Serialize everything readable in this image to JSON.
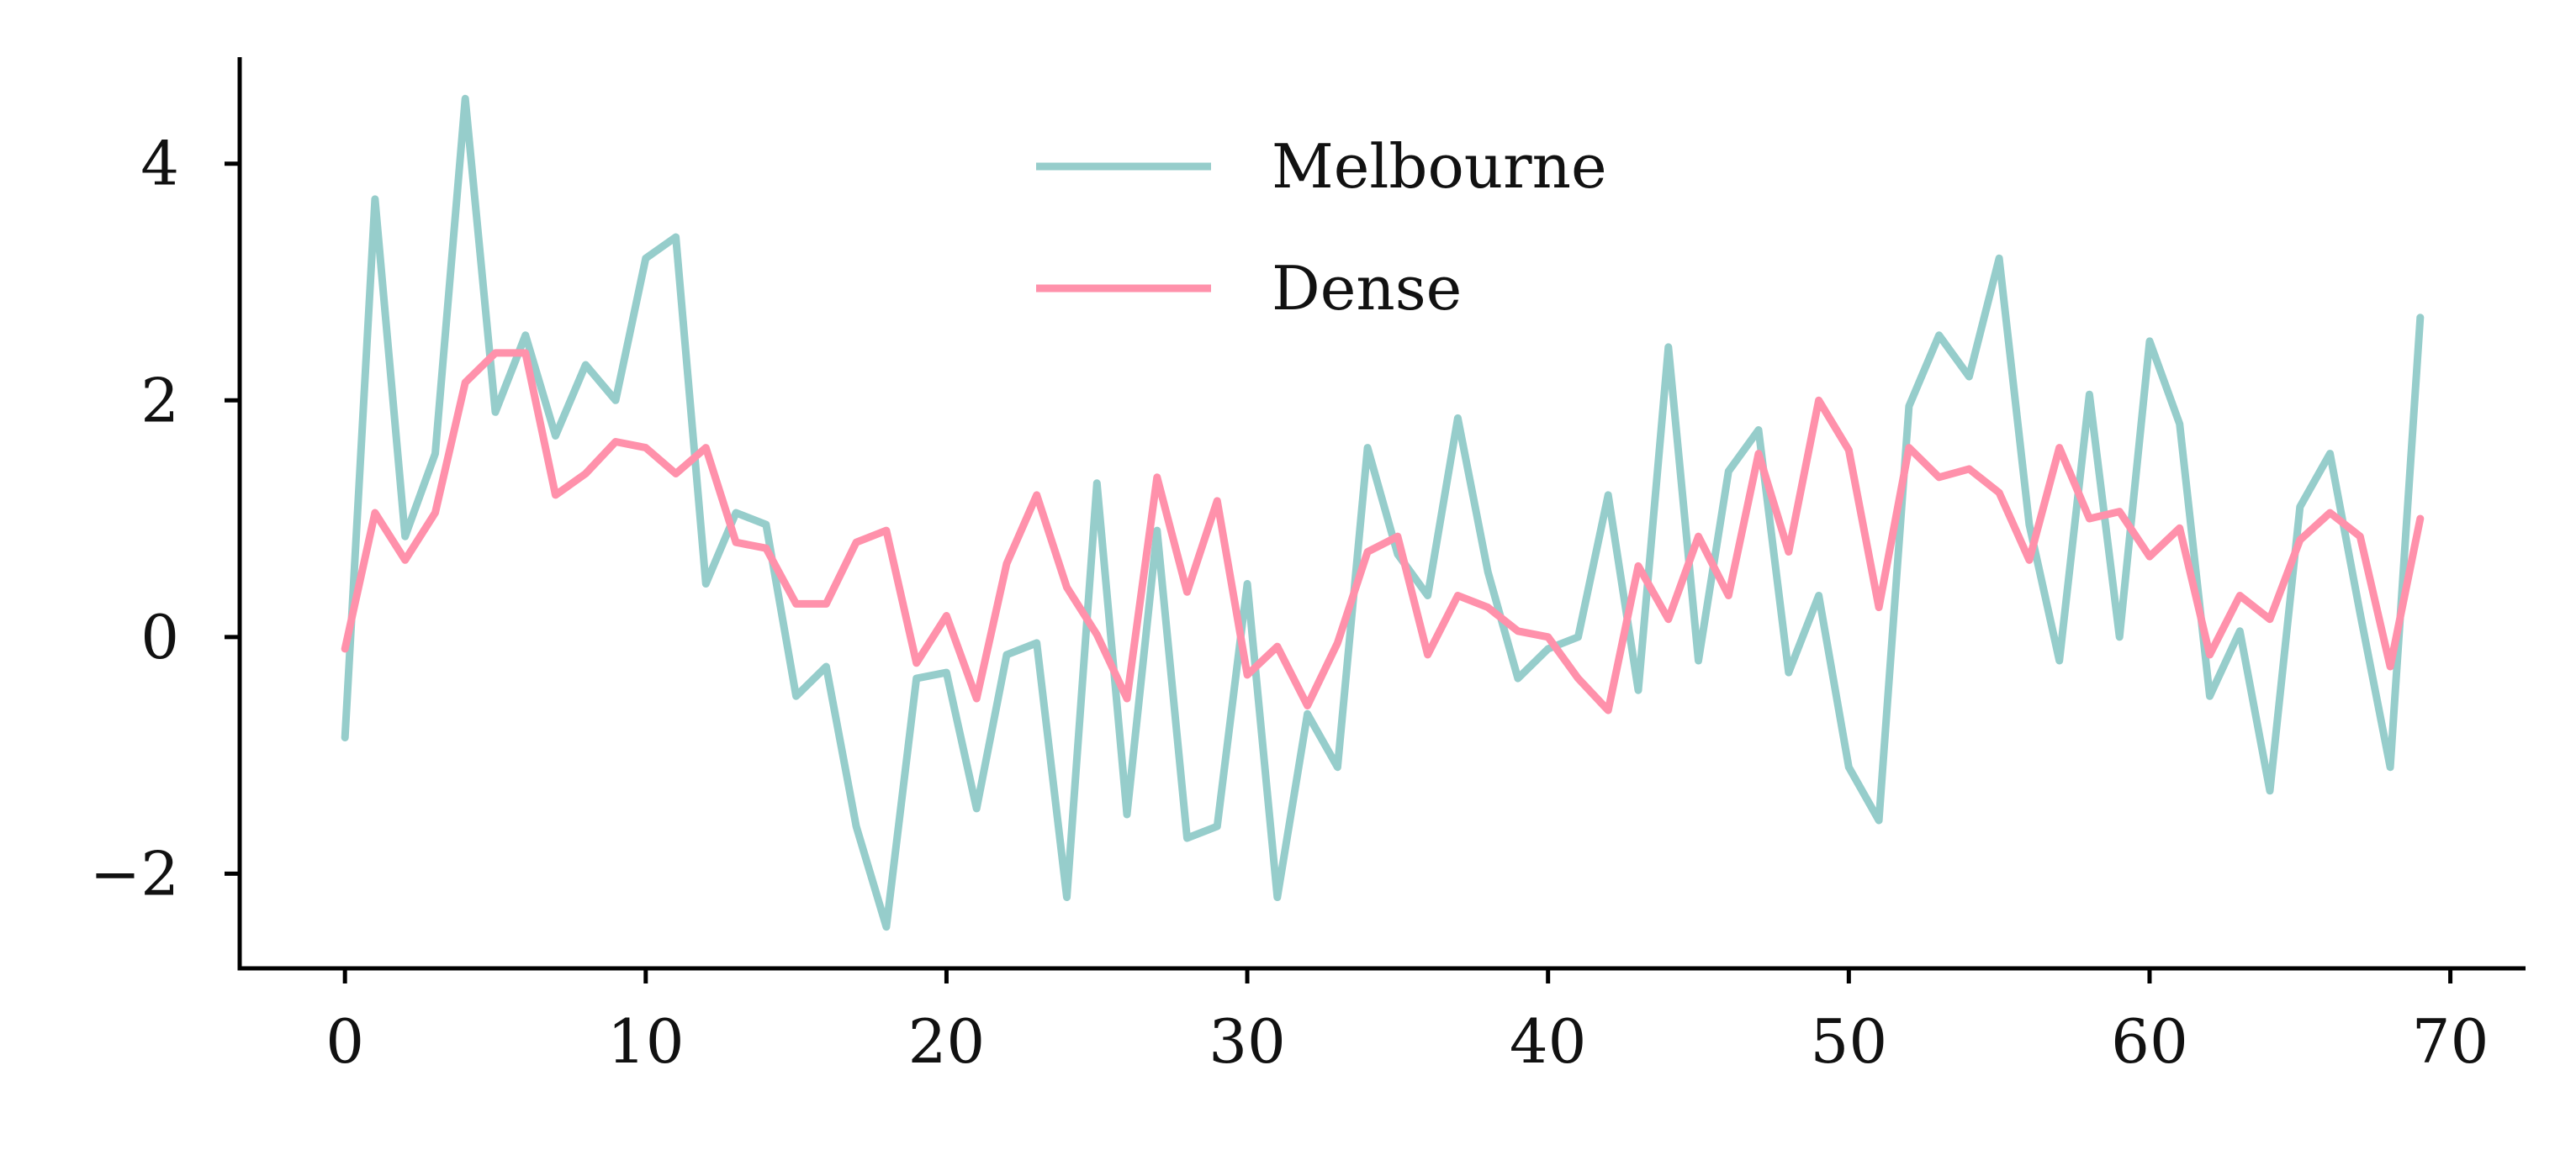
{
  "chart_data": {
    "type": "line",
    "title": "",
    "xlabel": "",
    "ylabel": "",
    "xlim": [
      -3.5,
      72.5
    ],
    "ylim": [
      -2.8,
      4.9
    ],
    "xticks": [
      0,
      10,
      20,
      30,
      40,
      50,
      60,
      70
    ],
    "yticks": [
      -2,
      0,
      2,
      4
    ],
    "xtick_labels": [
      "0",
      "10",
      "20",
      "30",
      "40",
      "50",
      "60",
      "70"
    ],
    "ytick_labels": [
      "−2",
      "0",
      "2",
      "4"
    ],
    "grid": false,
    "legend_position": "upper center",
    "x": [
      0,
      1,
      2,
      3,
      4,
      5,
      6,
      7,
      8,
      9,
      10,
      11,
      12,
      13,
      14,
      15,
      16,
      17,
      18,
      19,
      20,
      21,
      22,
      23,
      24,
      25,
      26,
      27,
      28,
      29,
      30,
      31,
      32,
      33,
      34,
      35,
      36,
      37,
      38,
      39,
      40,
      41,
      42,
      43,
      44,
      45,
      46,
      47,
      48,
      49,
      50,
      51,
      52,
      53,
      54,
      55,
      56,
      57,
      58,
      59,
      60,
      61,
      62,
      63,
      64,
      65,
      66,
      67,
      68,
      69
    ],
    "series": [
      {
        "name": "Melbourne",
        "color": "#96cdcb",
        "values": [
          -0.85,
          3.7,
          0.85,
          1.55,
          4.55,
          1.9,
          2.55,
          1.7,
          2.3,
          2.0,
          3.2,
          3.38,
          0.45,
          1.05,
          0.95,
          -0.5,
          -0.25,
          -1.6,
          -2.45,
          -0.35,
          -0.3,
          -1.45,
          -0.15,
          -0.05,
          -2.2,
          1.3,
          -1.5,
          0.9,
          -1.7,
          -1.6,
          0.45,
          -2.2,
          -0.65,
          -1.1,
          1.6,
          0.7,
          0.35,
          1.85,
          0.55,
          -0.35,
          -0.1,
          0.0,
          1.2,
          -0.45,
          2.45,
          -0.2,
          1.4,
          1.75,
          -0.3,
          0.35,
          -1.1,
          -1.55,
          1.95,
          2.55,
          2.2,
          3.2,
          0.95,
          -0.2,
          2.05,
          0.0,
          2.5,
          1.8,
          -0.5,
          0.05,
          -1.3,
          1.1,
          1.55,
          0.2,
          -1.1,
          2.7
        ]
      },
      {
        "name": "Dense",
        "color": "#ff91ab",
        "values": [
          -0.1,
          1.05,
          0.65,
          1.05,
          2.15,
          2.4,
          2.4,
          1.2,
          1.38,
          1.65,
          1.6,
          1.38,
          1.6,
          0.8,
          0.75,
          0.28,
          0.28,
          0.8,
          0.9,
          -0.22,
          0.18,
          -0.52,
          0.62,
          1.2,
          0.42,
          0.02,
          -0.52,
          1.35,
          0.38,
          1.15,
          -0.32,
          -0.08,
          -0.58,
          -0.05,
          0.72,
          0.85,
          -0.15,
          0.35,
          0.25,
          0.05,
          0.0,
          -0.35,
          -0.62,
          0.6,
          0.15,
          0.85,
          0.35,
          1.55,
          0.72,
          2.0,
          1.58,
          0.25,
          1.6,
          1.35,
          1.42,
          1.22,
          0.65,
          1.6,
          1.0,
          1.06,
          0.68,
          0.92,
          -0.15,
          0.35,
          0.15,
          0.82,
          1.05,
          0.85,
          -0.25,
          1.0
        ]
      }
    ]
  }
}
